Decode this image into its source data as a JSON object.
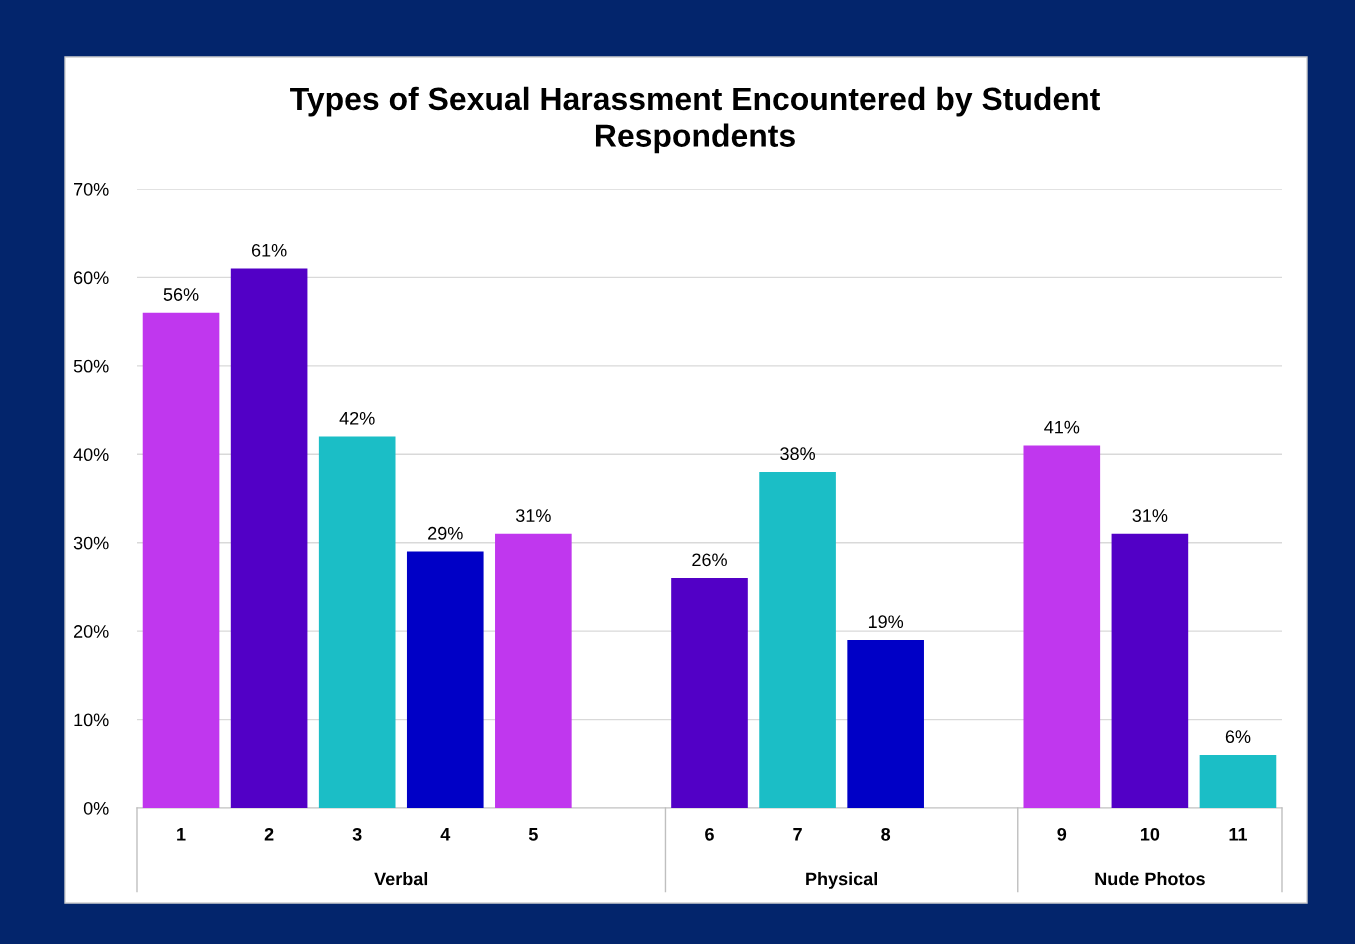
{
  "chart_data": {
    "type": "bar",
    "title": "Types of Sexual Harassment Encountered by Student\nRespondents",
    "categories": [
      "1",
      "2",
      "3",
      "4",
      "5",
      null,
      "6",
      "7",
      "8",
      null,
      "9",
      "10",
      "11"
    ],
    "values": [
      56,
      61,
      42,
      29,
      31,
      null,
      26,
      38,
      19,
      null,
      41,
      31,
      6
    ],
    "colors": [
      "#c037ee",
      "#5200c6",
      "#1bbec6",
      "#0000c6",
      "#c037ee",
      "#ffffff",
      "#5200c6",
      "#1bbec6",
      "#0000c6",
      "#ffffff",
      "#c037ee",
      "#5200c6",
      "#1bbec6"
    ],
    "value_labels": [
      "56%",
      "61%",
      "42%",
      "29%",
      "31%",
      null,
      "26%",
      "38%",
      "19%",
      null,
      "41%",
      "31%",
      "6%"
    ],
    "annotations": [
      "Verbal",
      "Physical",
      "Nude Photos"
    ],
    "ylim": [
      0,
      70
    ],
    "yticks": [
      {
        "value": 0,
        "label": "0%"
      },
      {
        "value": 10,
        "label": "10%"
      },
      {
        "value": 20,
        "label": "20%"
      },
      {
        "value": 30,
        "label": "30%"
      },
      {
        "value": 40,
        "label": "40%"
      },
      {
        "value": 50,
        "label": "50%"
      },
      {
        "value": 60,
        "label": "60%"
      },
      {
        "value": 70,
        "label": "70%"
      }
    ],
    "grid": "y"
  }
}
